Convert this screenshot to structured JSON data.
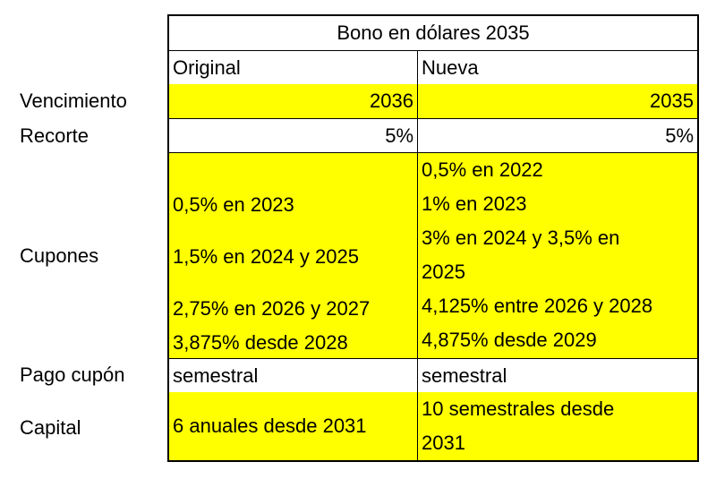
{
  "table": {
    "title": "Bono en dólares 2035",
    "col_original": "Original",
    "col_nueva": "Nueva",
    "rows": {
      "vencimiento": {
        "label": "Vencimiento",
        "original": "2036",
        "nueva": "2035"
      },
      "recorte": {
        "label": "Recorte",
        "original": "5%",
        "nueva": "5%"
      },
      "cupones": {
        "label": "Cupones",
        "original": [
          "0,5% en 2023",
          "1,5% en 2024 y 2025",
          "2,75% en 2026 y 2027",
          "3,875% desde 2028"
        ],
        "nueva": [
          "0,5% en 2022",
          "1% en 2023",
          "3% en 2024 y 3,5% en",
          "2025",
          "4,125% entre 2026 y 2028",
          "4,875% desde 2029"
        ]
      },
      "pago_cupon": {
        "label": "Pago cupón",
        "original": "semestral",
        "nueva": "semestral"
      },
      "capital": {
        "label": "Capital",
        "original": "6 anuales desde 2031",
        "nueva": [
          "10 semestrales desde",
          "2031"
        ]
      }
    }
  },
  "colors": {
    "highlight": "#ffff00",
    "border": "#000000"
  }
}
